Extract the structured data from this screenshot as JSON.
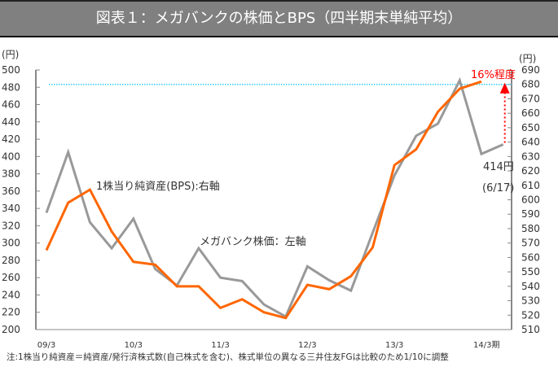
{
  "title": "図表１：メガバンクの株価とBPS（四半期末単純平均）",
  "chart_data": {
    "type": "line",
    "title": "図表１：メガバンクの株価とBPS（四半期末単純平均）",
    "left_unit": "(円)",
    "right_unit": "(円)",
    "left_ylim": [
      200,
      500
    ],
    "left_ticks": [
      200,
      220,
      240,
      260,
      280,
      300,
      320,
      340,
      360,
      380,
      400,
      420,
      440,
      460,
      480,
      500
    ],
    "right_ylim": [
      510,
      690
    ],
    "right_ticks": [
      510,
      520,
      530,
      540,
      550,
      560,
      570,
      580,
      590,
      600,
      610,
      620,
      630,
      640,
      650,
      660,
      670,
      680,
      690
    ],
    "x_tick_labels": [
      "09/3",
      "10/3",
      "11/3",
      "12/3",
      "13/3",
      "14/3期"
    ],
    "series": [
      {
        "name": "メガバンク株価：左軸",
        "axis": "left",
        "color": "#999999",
        "values": [
          335,
          405,
          324,
          294,
          328,
          270,
          251,
          294,
          260,
          256,
          229,
          215,
          273,
          257,
          245,
          312,
          378,
          424,
          438,
          488,
          403,
          414
        ]
      },
      {
        "name": "1株当り純資産(BPS):右軸",
        "axis": "right",
        "color": "#ff6600",
        "values": [
          565,
          598,
          607,
          578,
          557,
          555,
          540,
          540,
          525,
          531,
          522,
          518,
          541,
          538,
          547,
          567,
          624,
          635,
          661,
          677,
          682
        ]
      }
    ],
    "reference_line": {
      "value_right": 680,
      "color": "#33ccff"
    },
    "annotations": {
      "bps_label": "1株当り純資産(BPS):右軸",
      "price_label": "メガバンク株価：左軸",
      "premium": "16%程度",
      "latest_price": "414円",
      "latest_date": "(6/17)"
    },
    "footnote": "注:1株当り純資産＝純資産/発行済株式数(自己株式を含む)、株式単位の異なる三井住友FGは比較のため1/10に調整"
  }
}
